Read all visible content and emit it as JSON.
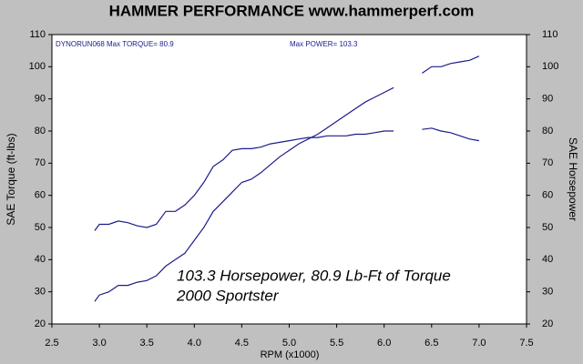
{
  "chart_data": {
    "type": "line",
    "title": "HAMMER PERFORMANCE www.hammerperf.com",
    "xlabel": "RPM (x1000)",
    "ylabel": "SAE Torque (ft-lbs)",
    "y2label": "SAE Horsepower",
    "annotations": [
      "DYNORUN068 Max TORQUE= 80.9",
      "Max POWER= 103.3",
      "103.3 Horsepower, 80.9 Lb-Ft of Torque",
      "2000 Sportster"
    ],
    "x": [
      2.95,
      3.0,
      3.1,
      3.2,
      3.3,
      3.4,
      3.5,
      3.6,
      3.7,
      3.8,
      3.9,
      4.0,
      4.1,
      4.2,
      4.3,
      4.4,
      4.5,
      4.6,
      4.7,
      4.8,
      4.9,
      5.0,
      5.1,
      5.2,
      5.3,
      5.4,
      5.5,
      5.6,
      5.7,
      5.8,
      5.9,
      6.0,
      6.1,
      6.2,
      6.4,
      6.5,
      6.6,
      6.7,
      6.8,
      6.9,
      7.0
    ],
    "series": [
      {
        "name": "SAE Torque",
        "color": "#1c1c8c",
        "axis": "y",
        "values": [
          49,
          51,
          51,
          52,
          51.5,
          50.5,
          50,
          51,
          55,
          55,
          57,
          60,
          64,
          69,
          71,
          74,
          74.5,
          74.5,
          75,
          76,
          76.5,
          77,
          77.5,
          78,
          78,
          78.5,
          78.5,
          78.5,
          79,
          79,
          79.5,
          80,
          80,
          null,
          80.5,
          80.9,
          80,
          79.5,
          78.5,
          77.5,
          77
        ]
      },
      {
        "name": "SAE Horsepower",
        "color": "#1c1c8c",
        "axis": "y2",
        "values": [
          27,
          29,
          30,
          32,
          32,
          33,
          33.5,
          35,
          38,
          40,
          42,
          46,
          50,
          55,
          58,
          61,
          64,
          65,
          67,
          69.5,
          72,
          74,
          76,
          77.5,
          79,
          81,
          83,
          85,
          87,
          89,
          90.5,
          92,
          93.5,
          null,
          98,
          100,
          100,
          101,
          101.5,
          102,
          103.3
        ]
      }
    ],
    "xlim": [
      2.5,
      7.5
    ],
    "xticks": [
      2.5,
      {
        "value": 3,
        "label": "3.0"
      },
      3.5,
      {
        "value": 4,
        "label": "4.0"
      },
      4.5,
      {
        "value": 5,
        "label": "5.0"
      },
      5.5,
      {
        "value": 6,
        "label": "6.0"
      },
      6.5,
      {
        "value": 7,
        "label": "7.0"
      },
      7.5
    ],
    "ylim": [
      20,
      110
    ],
    "yticks": [
      20,
      30,
      40,
      50,
      60,
      70,
      80,
      90,
      100,
      110
    ],
    "y2lim": [
      20,
      110
    ],
    "y2ticks": [
      20,
      30,
      40,
      50,
      60,
      70,
      80,
      90,
      100,
      110
    ],
    "grid": false
  }
}
